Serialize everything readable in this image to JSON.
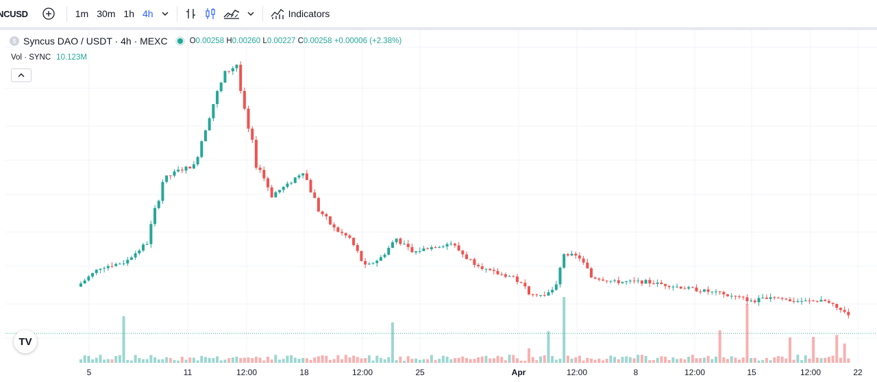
{
  "toolbar": {
    "symbol": "NCUSD",
    "intervals": [
      "1m",
      "30m",
      "1h",
      "4h"
    ],
    "active_interval": "4h",
    "indicators_label": "Indicators"
  },
  "legend": {
    "title": "Syncus DAO / USDT · 4h · MEXC",
    "o_key": "O",
    "o_val": "0.00258",
    "h_key": "H",
    "h_val": "0.00260",
    "l_key": "L",
    "l_val": "0.00227",
    "c_key": "C",
    "c_val": "0.00258",
    "change": "+0.00006 (+2.38%)",
    "vol_label": "Vol · SYNC",
    "vol_value": "10.123M"
  },
  "colors": {
    "up": "#26a69a",
    "down": "#ef5350",
    "accent": "#2962ff"
  },
  "chart_data": {
    "type": "candlestick",
    "x_ticks": [
      {
        "label": "5",
        "bold": false
      },
      {
        "label": "11",
        "bold": false
      },
      {
        "label": "12:00",
        "bold": false
      },
      {
        "label": "18",
        "bold": false
      },
      {
        "label": "12:00",
        "bold": false
      },
      {
        "label": "25",
        "bold": false
      },
      {
        "label": "Apr",
        "bold": true
      },
      {
        "label": "12:00",
        "bold": false
      },
      {
        "label": "8",
        "bold": false
      },
      {
        "label": "12:00",
        "bold": false
      },
      {
        "label": "15",
        "bold": false
      },
      {
        "label": "12:00",
        "bold": false
      },
      {
        "label": "22",
        "bold": false
      }
    ],
    "price_shape": [
      [
        0,
        0.0007
      ],
      [
        6,
        0.0011
      ],
      [
        12,
        0.0012
      ],
      [
        18,
        0.0016
      ],
      [
        22,
        0.0029
      ],
      [
        26,
        0.0031
      ],
      [
        30,
        0.0032
      ],
      [
        34,
        0.0043
      ],
      [
        38,
        0.0051
      ],
      [
        41,
        0.0053
      ],
      [
        43,
        0.0042
      ],
      [
        46,
        0.0033
      ],
      [
        50,
        0.0026
      ],
      [
        54,
        0.0028
      ],
      [
        58,
        0.0031
      ],
      [
        62,
        0.0023
      ],
      [
        66,
        0.0019
      ],
      [
        70,
        0.0017
      ],
      [
        74,
        0.0011
      ],
      [
        78,
        0.0013
      ],
      [
        82,
        0.0017
      ],
      [
        86,
        0.0014
      ],
      [
        90,
        0.0015
      ],
      [
        96,
        0.0016
      ],
      [
        100,
        0.0013
      ],
      [
        106,
        0.001
      ],
      [
        112,
        0.0009
      ],
      [
        116,
        0.0006
      ],
      [
        120,
        0.0005
      ],
      [
        123,
        0.0007
      ],
      [
        125,
        0.0014
      ],
      [
        129,
        0.0013
      ],
      [
        132,
        0.0009
      ],
      [
        138,
        0.0008
      ],
      [
        146,
        0.0008
      ],
      [
        154,
        0.0007
      ],
      [
        162,
        0.0006
      ],
      [
        168,
        0.0005
      ],
      [
        174,
        0.0004
      ],
      [
        178,
        0.0005
      ],
      [
        184,
        0.0004
      ],
      [
        192,
        0.0004
      ],
      [
        196,
        0.0002
      ],
      [
        198,
        5e-05
      ]
    ]
  }
}
